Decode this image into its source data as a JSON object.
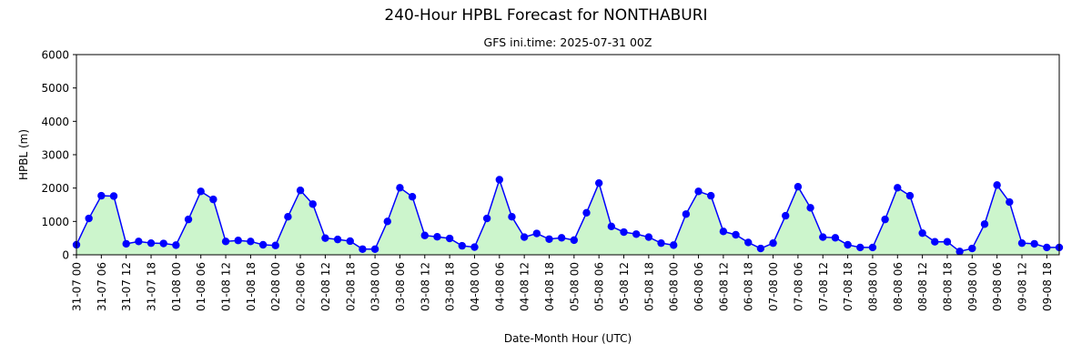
{
  "chart_data": {
    "type": "line",
    "title": "240-Hour HPBL Forecast for NONTHABURI",
    "subtitle": "GFS ini.time: 2025-07-31 00Z",
    "xlabel": "Date-Month Hour (UTC)",
    "ylabel": "HPBL (m)",
    "ylim": [
      0,
      6000
    ],
    "yticks": [
      "0",
      "1000",
      "2000",
      "3000",
      "4000",
      "5000",
      "6000"
    ],
    "xticks": [
      "31-07 00",
      "31-07 06",
      "31-07 12",
      "31-07 18",
      "01-08 00",
      "01-08 06",
      "01-08 12",
      "01-08 18",
      "02-08 00",
      "02-08 06",
      "02-08 12",
      "02-08 18",
      "03-08 00",
      "03-08 06",
      "03-08 12",
      "03-08 18",
      "04-08 00",
      "04-08 06",
      "04-08 12",
      "04-08 18",
      "05-08 00",
      "05-08 06",
      "05-08 12",
      "05-08 18",
      "06-08 00",
      "06-08 06",
      "06-08 12",
      "06-08 18",
      "07-08 00",
      "07-08 06",
      "07-08 12",
      "07-08 18",
      "08-08 00",
      "08-08 06",
      "08-08 12",
      "08-08 18",
      "09-08 00",
      "09-08 06",
      "09-08 12",
      "09-08 18"
    ],
    "x_step_hours": 3,
    "grid": false,
    "legend": "none",
    "line_color": "#0000ff",
    "marker_color": "#0000ff",
    "fill_color": "#ccf5cc",
    "series": [
      {
        "values": [
          300,
          1090,
          1770,
          1760,
          330,
          400,
          350,
          340,
          290,
          1060,
          1900,
          1660,
          400,
          430,
          400,
          300,
          280,
          1140,
          1930,
          1520,
          500,
          460,
          410,
          170,
          170,
          1000,
          2010,
          1740,
          580,
          540,
          490,
          270,
          230,
          1090,
          2250,
          1140,
          530,
          640,
          470,
          510,
          440,
          1260,
          2150,
          850,
          680,
          620,
          530,
          350,
          290,
          1220,
          1900,
          1770,
          700,
          600,
          370,
          190,
          350,
          1170,
          2040,
          1410,
          530,
          510,
          300,
          220,
          220,
          1060,
          2010,
          1770,
          650,
          390,
          390,
          100,
          190,
          920,
          2090,
          1580,
          350,
          330,
          220,
          220
        ]
      }
    ]
  }
}
